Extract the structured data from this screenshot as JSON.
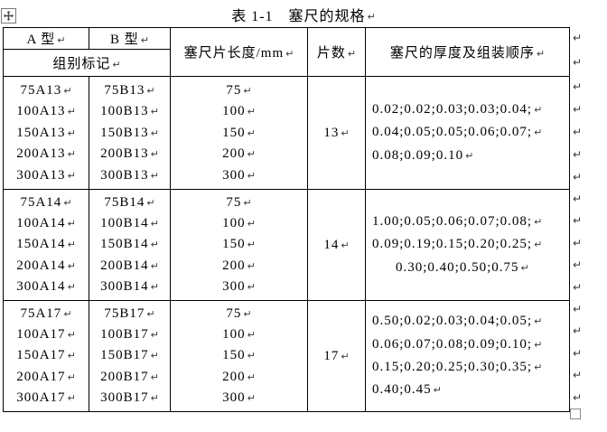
{
  "title": "表 1-1　塞尺的规格",
  "formatting": {
    "return_mark": "↵"
  },
  "table": {
    "header": {
      "type_a": "A 型",
      "type_b": "B 型",
      "group_label": "组别标记",
      "length": "塞尺片长度/mm",
      "pieces": "片数",
      "thickness": "塞尺的厚度及组装顺序"
    },
    "groups": [
      {
        "a_marks": [
          "75A13",
          "100A13",
          "150A13",
          "200A13",
          "300A13"
        ],
        "b_marks": [
          "75B13",
          "100B13",
          "150B13",
          "200B13",
          "300B13"
        ],
        "lengths": [
          "75",
          "100",
          "150",
          "200",
          "300"
        ],
        "pieces": "13",
        "thickness_lines": [
          {
            "text": "0.02;0.02;0.03;0.03;0.04;",
            "indent": false
          },
          {
            "text": "0.04;0.05;0.05;0.06;0.07;",
            "indent": false
          },
          {
            "text": "0.08;0.09;0.10",
            "indent": false
          }
        ]
      },
      {
        "a_marks": [
          "75A14",
          "100A14",
          "150A14",
          "200A14",
          "300A14"
        ],
        "b_marks": [
          "75B14",
          "100B14",
          "150B14",
          "200B14",
          "300B14"
        ],
        "lengths": [
          "75",
          "100",
          "150",
          "200",
          "300"
        ],
        "pieces": "14",
        "thickness_lines": [
          {
            "text": "1.00;0.05;0.06;0.07;0.08;",
            "indent": false
          },
          {
            "text": "0.09;0.19;0.15;0.20;0.25;",
            "indent": false
          },
          {
            "text": "0.30;0.40;0.50;0.75",
            "indent": true
          }
        ]
      },
      {
        "a_marks": [
          "75A17",
          "100A17",
          "150A17",
          "200A17",
          "300A17"
        ],
        "b_marks": [
          "75B17",
          "100B17",
          "150B17",
          "200B17",
          "300B17"
        ],
        "lengths": [
          "75",
          "100",
          "150",
          "200",
          "300"
        ],
        "pieces": "17",
        "thickness_lines": [
          {
            "text": "0.50;0.02;0.03;0.04;0.05;",
            "indent": false
          },
          {
            "text": "0.06;0.07;0.08;0.09;0.10;",
            "indent": false
          },
          {
            "text": "0.15;0.20;0.25;0.30;0.35;",
            "indent": false
          },
          {
            "text": "0.40;0.45",
            "indent": false
          }
        ]
      }
    ]
  }
}
